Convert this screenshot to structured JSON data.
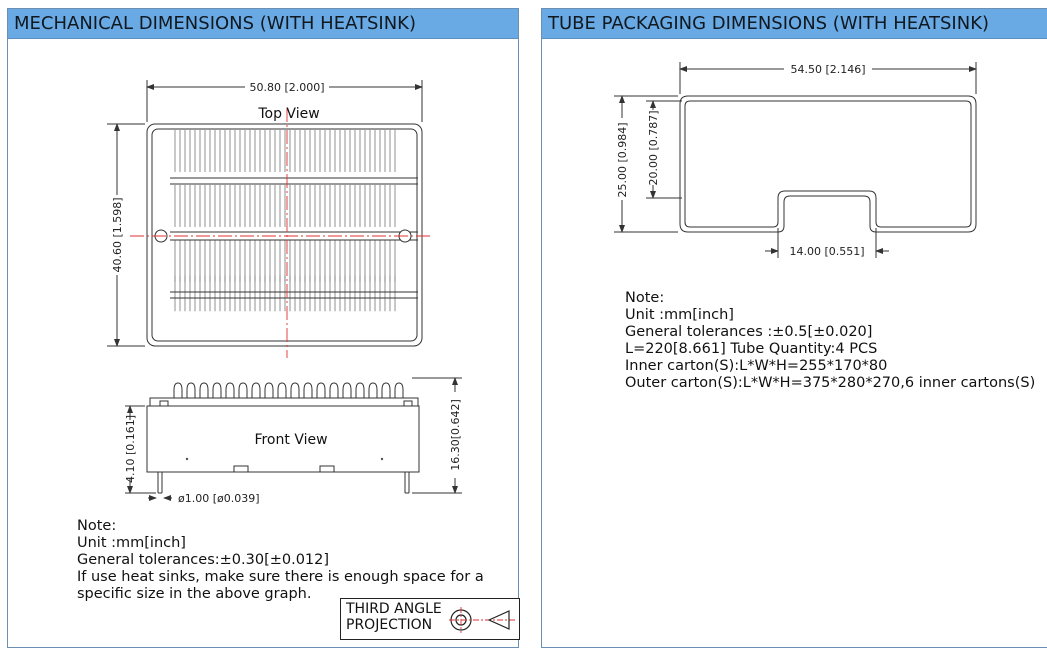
{
  "left_panel": {
    "title": "MECHANICAL DIMENSIONS (WITH HEATSINK)",
    "top_view_label": "Top View",
    "front_view_label": "Front View",
    "dim_width": "50.80 [2.000]",
    "dim_height": "40.60 [1.598]",
    "dim_pin_length": "4.10 [0.161]",
    "dim_total_height": "16.30[0.642]",
    "dim_pin_diameter": "ø1.00 [ø0.039]",
    "notes": [
      "Note:",
      "Unit :mm[inch]",
      "General tolerances:±0.30[±0.012]",
      "If use heat sinks, make sure there is enough space for a",
      "specific size in the above graph."
    ],
    "projection_label": "THIRD ANGLE PROJECTION"
  },
  "right_panel": {
    "title": "TUBE PACKAGING DIMENSIONS (WITH HEATSINK)",
    "dim_width": "54.50 [2.146]",
    "dim_outer_height": "25.00 [0.984]",
    "dim_inner_height": "20.00 [0.787]",
    "dim_slot_width": "14.00 [0.551]",
    "notes": [
      "Note:",
      "Unit :mm[inch]",
      "General tolerances :±0.5[±0.020]",
      "L=220[8.661] Tube Quantity:4 PCS",
      "Inner carton(S):L*W*H=255*170*80",
      "Outer carton(S):L*W*H=375*280*270,6 inner cartons(S)"
    ]
  },
  "colors": {
    "header_bg": "#6aaae4",
    "panel_border": "#6d8fb4",
    "center_line": "#e03030",
    "drawing_line": "#333333"
  }
}
